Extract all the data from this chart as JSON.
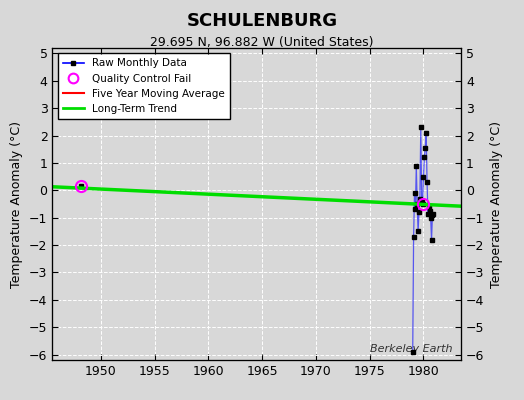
{
  "title": "SCHULENBURG",
  "subtitle": "29.695 N, 96.882 W (United States)",
  "watermark": "Berkeley Earth",
  "ylabel": "Temperature Anomaly (°C)",
  "xlim": [
    1945.5,
    1983.5
  ],
  "ylim": [
    -6.2,
    5.2
  ],
  "yticks": [
    -6,
    -5,
    -4,
    -3,
    -2,
    -1,
    0,
    1,
    2,
    3,
    4,
    5
  ],
  "xticks": [
    1950,
    1955,
    1960,
    1965,
    1970,
    1975,
    1980
  ],
  "background_color": "#d8d8d8",
  "monthly_segments": [
    {
      "years": [
        1948.2
      ],
      "values": [
        0.15
      ]
    },
    {
      "years": [
        1979.0,
        1979.083,
        1979.167,
        1979.25,
        1979.333,
        1979.417,
        1979.5,
        1979.583,
        1979.667,
        1979.75,
        1979.833,
        1979.917,
        1980.0,
        1980.083,
        1980.167,
        1980.25,
        1980.333,
        1980.417,
        1980.5,
        1980.583,
        1980.667,
        1980.75,
        1980.833,
        1980.917
      ],
      "values": [
        -5.9,
        -1.7,
        -0.1,
        -0.7,
        0.9,
        -0.5,
        -1.5,
        -0.8,
        -0.3,
        2.3,
        -0.4,
        -0.5,
        0.5,
        1.2,
        1.55,
        2.1,
        0.3,
        -0.85,
        -0.6,
        -0.75,
        -1.0,
        -1.8,
        -0.9,
        -0.85
      ]
    }
  ],
  "qc_fail_points": [
    {
      "year": 1948.2,
      "value": 0.15
    },
    {
      "year": 1979.917,
      "value": -0.5
    }
  ],
  "long_term_trend": {
    "x": [
      1945.5,
      1983.5
    ],
    "y": [
      0.13,
      -0.58
    ]
  },
  "colors": {
    "monthly_line": "#0000ff",
    "monthly_line_alpha": 0.5,
    "monthly_dot": "#000000",
    "qc_fail": "#ff00ff",
    "five_year_ma": "#ff0000",
    "long_term_trend": "#00dd00",
    "grid": "#ffffff",
    "background": "#d8d8d8"
  }
}
